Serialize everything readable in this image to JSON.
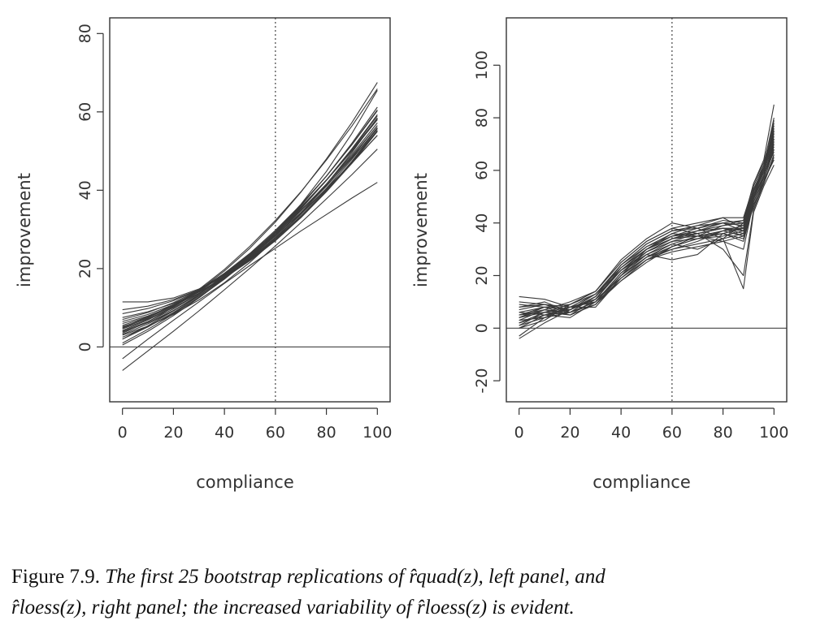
{
  "chart_data": [
    {
      "type": "line",
      "panel": "left",
      "xlabel": "compliance",
      "ylabel": "improvement",
      "xlim": [
        -5,
        105
      ],
      "ylim": [
        -14,
        84
      ],
      "xticks": [
        0,
        20,
        40,
        60,
        80,
        100
      ],
      "yticks": [
        0,
        20,
        40,
        60,
        80
      ],
      "hline": 0,
      "vline": 60,
      "grid": false,
      "series_count": 25,
      "x": [
        0,
        10,
        20,
        30,
        40,
        50,
        60,
        70,
        80,
        90,
        100
      ],
      "series": [
        {
          "values": [
            3.5,
            6.4,
            10.2,
            14.7,
            19.8,
            25.7,
            32.3,
            39.6,
            47.7,
            56.4,
            65.9
          ]
        },
        {
          "values": [
            4.6,
            7.0,
            10.3,
            14.4,
            19.4,
            25.2,
            31.9,
            39.5,
            48.0,
            57.3,
            67.5
          ]
        },
        {
          "values": [
            11.5,
            11.5,
            12.5,
            14.8,
            18.4,
            23.2,
            29.2,
            36.4,
            44.8,
            54.5,
            65.5
          ]
        },
        {
          "values": [
            2.0,
            5.1,
            8.8,
            13.0,
            17.8,
            23.2,
            29.1,
            35.6,
            42.6,
            50.2,
            58.3
          ]
        },
        {
          "values": [
            -3.0,
            2.0,
            6.8,
            11.5,
            16.2,
            20.8,
            25.2,
            29.6,
            33.8,
            38.0,
            42.0
          ]
        },
        {
          "values": [
            7.5,
            9.0,
            11.1,
            14.0,
            17.6,
            22.0,
            27.1,
            33.0,
            39.6,
            46.9,
            55.0
          ]
        },
        {
          "values": [
            5.0,
            7.6,
            10.8,
            14.5,
            18.8,
            23.6,
            28.9,
            34.8,
            41.2,
            48.2,
            55.7
          ]
        },
        {
          "values": [
            4.0,
            6.5,
            9.7,
            13.6,
            18.2,
            23.5,
            29.5,
            36.2,
            43.6,
            51.7,
            60.5
          ]
        },
        {
          "values": [
            3.0,
            5.3,
            8.3,
            12.0,
            16.4,
            21.6,
            27.5,
            34.2,
            41.5,
            49.6,
            58.5
          ]
        },
        {
          "values": [
            6.0,
            7.9,
            10.5,
            13.7,
            17.6,
            22.2,
            27.5,
            33.4,
            40.0,
            47.3,
            55.3
          ]
        },
        {
          "values": [
            -6.0,
            -1.0,
            4.0,
            9.2,
            14.6,
            20.1,
            25.8,
            31.7,
            37.8,
            44.0,
            50.5
          ]
        },
        {
          "values": [
            5.5,
            7.7,
            10.7,
            14.4,
            18.8,
            23.9,
            29.8,
            36.3,
            43.6,
            51.6,
            60.3
          ]
        },
        {
          "values": [
            2.5,
            5.2,
            8.6,
            12.6,
            17.3,
            22.6,
            28.6,
            35.2,
            42.5,
            50.4,
            59.0
          ]
        },
        {
          "values": [
            8.5,
            9.8,
            11.8,
            14.6,
            18.1,
            22.4,
            27.5,
            33.3,
            39.8,
            47.1,
            55.2
          ]
        },
        {
          "values": [
            4.8,
            7.4,
            10.5,
            14.2,
            18.5,
            23.4,
            28.8,
            34.9,
            41.5,
            48.7,
            56.5
          ]
        },
        {
          "values": [
            3.8,
            6.2,
            9.3,
            13.1,
            17.6,
            22.8,
            28.7,
            35.3,
            42.6,
            50.6,
            59.3
          ]
        },
        {
          "values": [
            7.0,
            8.8,
            11.3,
            14.5,
            18.4,
            23.0,
            28.3,
            34.3,
            41.0,
            48.4,
            56.5
          ]
        },
        {
          "values": [
            2.0,
            5.4,
            9.2,
            13.4,
            18.0,
            23.0,
            28.4,
            34.2,
            40.4,
            47.0,
            54.0
          ]
        },
        {
          "values": [
            5.2,
            7.2,
            10.0,
            13.6,
            18.0,
            23.2,
            29.2,
            36.0,
            43.6,
            52.0,
            61.2
          ]
        },
        {
          "values": [
            0.5,
            4.0,
            8.0,
            12.5,
            17.5,
            23.0,
            29.0,
            35.5,
            42.5,
            50.0,
            58.0
          ]
        },
        {
          "values": [
            9.5,
            10.4,
            12.1,
            14.6,
            18.0,
            22.2,
            27.2,
            33.1,
            39.8,
            47.4,
            55.8
          ]
        },
        {
          "values": [
            4.2,
            6.9,
            10.2,
            14.1,
            18.6,
            23.7,
            29.4,
            35.7,
            42.6,
            50.1,
            58.2
          ]
        },
        {
          "values": [
            6.5,
            8.3,
            10.8,
            14.0,
            17.9,
            22.5,
            27.8,
            33.8,
            40.5,
            47.9,
            56.0
          ]
        },
        {
          "values": [
            3.2,
            5.9,
            9.2,
            13.1,
            17.6,
            22.7,
            28.4,
            34.7,
            41.6,
            49.1,
            57.2
          ]
        },
        {
          "values": [
            1.0,
            4.5,
            8.4,
            12.7,
            17.4,
            22.5,
            28.0,
            33.9,
            40.2,
            46.9,
            54.0
          ]
        }
      ]
    },
    {
      "type": "line",
      "panel": "right",
      "xlabel": "compliance",
      "ylabel": "improvement",
      "xlim": [
        -5,
        105
      ],
      "ylim": [
        -28,
        118
      ],
      "xticks": [
        0,
        20,
        40,
        60,
        80,
        100
      ],
      "yticks": [
        -20,
        0,
        20,
        40,
        60,
        80,
        100
      ],
      "hline": 0,
      "vline": 60,
      "grid": false,
      "series_count": 25,
      "x": [
        0,
        10,
        20,
        30,
        40,
        50,
        60,
        70,
        80,
        88,
        92,
        96,
        100
      ],
      "series": [
        {
          "values": [
            2,
            5,
            6,
            10,
            20,
            28,
            33,
            36,
            38,
            38,
            50,
            58,
            70
          ]
        },
        {
          "values": [
            5,
            8,
            7,
            12,
            24,
            32,
            37,
            38,
            40,
            41,
            52,
            60,
            75
          ]
        },
        {
          "values": [
            -3,
            4,
            8,
            10,
            18,
            25,
            31,
            34,
            37,
            35,
            48,
            56,
            68
          ]
        },
        {
          "values": [
            8,
            10,
            6,
            9,
            20,
            30,
            36,
            39,
            42,
            42,
            54,
            62,
            80
          ]
        },
        {
          "values": [
            0,
            3,
            9,
            13,
            22,
            28,
            32,
            35,
            36,
            34,
            47,
            55,
            65
          ]
        },
        {
          "values": [
            4,
            6,
            5,
            11,
            23,
            30,
            34,
            35,
            37,
            39,
            51,
            59,
            72
          ]
        },
        {
          "values": [
            12,
            11,
            8,
            8,
            19,
            27,
            32,
            30,
            34,
            40,
            53,
            60,
            74
          ]
        },
        {
          "values": [
            3,
            7,
            10,
            14,
            25,
            33,
            38,
            36,
            30,
            20,
            45,
            55,
            66
          ]
        },
        {
          "values": [
            6,
            5,
            4,
            10,
            21,
            29,
            34,
            37,
            40,
            37,
            50,
            57,
            71
          ]
        },
        {
          "values": [
            1,
            4,
            6,
            12,
            24,
            31,
            35,
            36,
            38,
            36,
            49,
            58,
            69
          ]
        },
        {
          "values": [
            7,
            9,
            8,
            10,
            20,
            27,
            31,
            35,
            39,
            41,
            55,
            63,
            78
          ]
        },
        {
          "values": [
            -4,
            2,
            7,
            13,
            23,
            30,
            34,
            37,
            38,
            35,
            46,
            56,
            64
          ]
        },
        {
          "values": [
            5,
            6,
            7,
            11,
            22,
            29,
            33,
            34,
            35,
            37,
            52,
            61,
            76
          ]
        },
        {
          "values": [
            9,
            8,
            5,
            9,
            18,
            26,
            30,
            33,
            37,
            38,
            50,
            58,
            70
          ]
        },
        {
          "values": [
            2,
            6,
            9,
            14,
            26,
            34,
            40,
            38,
            34,
            15,
            44,
            54,
            62
          ]
        },
        {
          "values": [
            4,
            7,
            6,
            10,
            21,
            28,
            26,
            28,
            36,
            38,
            51,
            60,
            73
          ]
        },
        {
          "values": [
            6,
            8,
            7,
            12,
            22,
            30,
            35,
            38,
            41,
            40,
            53,
            61,
            77
          ]
        },
        {
          "values": [
            0,
            5,
            8,
            11,
            19,
            26,
            31,
            34,
            36,
            33,
            47,
            55,
            66
          ]
        },
        {
          "values": [
            3,
            4,
            6,
            10,
            20,
            27,
            30,
            32,
            34,
            36,
            50,
            58,
            68
          ]
        },
        {
          "values": [
            8,
            9,
            7,
            11,
            23,
            31,
            36,
            35,
            33,
            30,
            48,
            57,
            72
          ]
        },
        {
          "values": [
            1,
            6,
            8,
            13,
            24,
            32,
            37,
            39,
            40,
            39,
            52,
            62,
            79
          ]
        },
        {
          "values": [
            5,
            7,
            5,
            9,
            19,
            26,
            29,
            31,
            33,
            35,
            49,
            58,
            67
          ]
        },
        {
          "values": [
            10,
            9,
            6,
            10,
            21,
            29,
            34,
            36,
            38,
            37,
            52,
            60,
            75
          ]
        },
        {
          "values": [
            2,
            5,
            7,
            12,
            22,
            30,
            35,
            37,
            39,
            40,
            55,
            64,
            85
          ]
        },
        {
          "values": [
            4,
            8,
            9,
            14,
            25,
            33,
            38,
            40,
            42,
            38,
            50,
            60,
            74
          ]
        }
      ]
    }
  ],
  "caption": {
    "lead": "Figure 7.9.",
    "line1": "The first 25 bootstrap replications of r̂quad(z), left panel, and",
    "line2": "r̂loess(z), right panel; the increased variability of r̂loess(z) is evident."
  }
}
